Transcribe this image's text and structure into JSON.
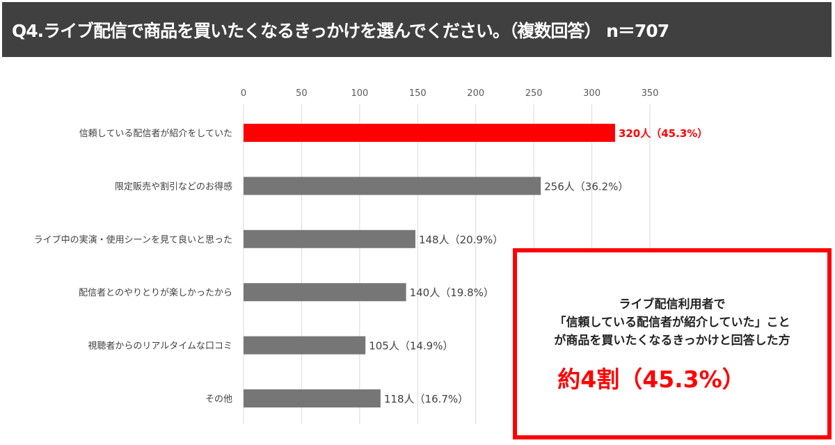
{
  "header": {
    "title": "Q4.ライブ配信で商品を買いたくなるきっかけを選んでください。（複数回答） n＝707"
  },
  "chart_data": {
    "type": "bar",
    "orientation": "horizontal",
    "categories": [
      "信頼している配信者が紹介をしていた",
      "限定販売や割引などのお得感",
      "ライブ中の実演・使用シーンを見て良いと思った",
      "配信者とのやりとりが楽しかったから",
      "視聴者からのリアルタイムな口コミ",
      "その他"
    ],
    "values": [
      320,
      256,
      148,
      140,
      105,
      118
    ],
    "data_labels": [
      "320人（45.3%）",
      "256人（36.2%）",
      "148人（20.9%）",
      "140人（19.8%）",
      "105人（14.9%）",
      "118人（16.7%）"
    ],
    "xlim": [
      0,
      350
    ],
    "ticks": [
      0,
      50,
      100,
      150,
      200,
      250,
      300,
      350
    ],
    "grid": true,
    "highlight_index": 0,
    "colors": {
      "highlight": "#ff0000",
      "default": "#767676"
    }
  },
  "callout": {
    "lines": [
      "ライブ配信利用者で",
      "「信頼している配信者が紹介していた」こと",
      "が商品を買いたくなるきっかけと回答した方"
    ],
    "headline": "約4割（45.3%）"
  }
}
